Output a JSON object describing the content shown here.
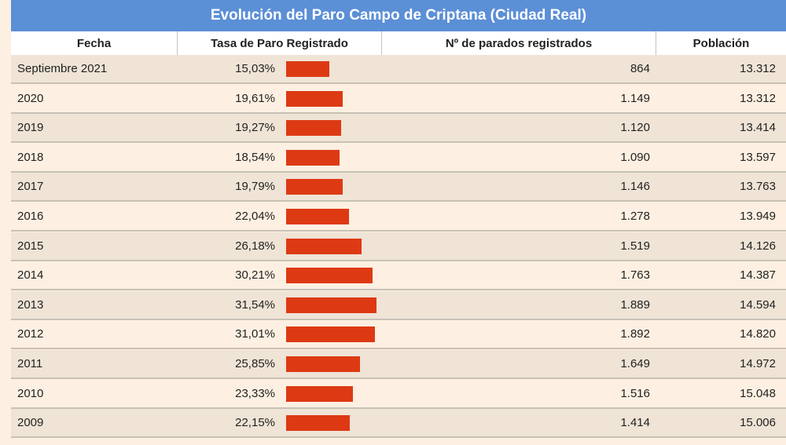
{
  "title": "Evolución del Paro Campo de Criptana (Ciudad Real)",
  "headers": {
    "fecha": "Fecha",
    "tasa": "Tasa de Paro Registrado",
    "parados": "Nº de parados registrados",
    "poblacion": "Población"
  },
  "colors": {
    "header_bg": "#5b8fd6",
    "bar": "#dd3a14",
    "row_alt": "#efe4d6",
    "row_base": "#fdf0e2"
  },
  "rows": [
    {
      "fecha": "Septiembre 2021",
      "tasa": "15,03%",
      "parados": "864",
      "poblacion": "13.312"
    },
    {
      "fecha": "2020",
      "tasa": "19,61%",
      "parados": "1.149",
      "poblacion": "13.312"
    },
    {
      "fecha": "2019",
      "tasa": "19,27%",
      "parados": "1.120",
      "poblacion": "13.414"
    },
    {
      "fecha": "2018",
      "tasa": "18,54%",
      "parados": "1.090",
      "poblacion": "13.597"
    },
    {
      "fecha": "2017",
      "tasa": "19,79%",
      "parados": "1.146",
      "poblacion": "13.763"
    },
    {
      "fecha": "2016",
      "tasa": "22,04%",
      "parados": "1.278",
      "poblacion": "13.949"
    },
    {
      "fecha": "2015",
      "tasa": "26,18%",
      "parados": "1.519",
      "poblacion": "14.126"
    },
    {
      "fecha": "2014",
      "tasa": "30,21%",
      "parados": "1.763",
      "poblacion": "14.387"
    },
    {
      "fecha": "2013",
      "tasa": "31,54%",
      "parados": "1.889",
      "poblacion": "14.594"
    },
    {
      "fecha": "2012",
      "tasa": "31,01%",
      "parados": "1.892",
      "poblacion": "14.820"
    },
    {
      "fecha": "2011",
      "tasa": "25,85%",
      "parados": "1.649",
      "poblacion": "14.972"
    },
    {
      "fecha": "2010",
      "tasa": "23,33%",
      "parados": "1.516",
      "poblacion": "15.048"
    },
    {
      "fecha": "2009",
      "tasa": "22,15%",
      "parados": "1.414",
      "poblacion": "15.006"
    }
  ],
  "chart_data": {
    "type": "bar",
    "categories": [
      "Septiembre 2021",
      "2020",
      "2019",
      "2018",
      "2017",
      "2016",
      "2015",
      "2014",
      "2013",
      "2012",
      "2011",
      "2010",
      "2009"
    ],
    "values": [
      15.03,
      19.61,
      19.27,
      18.54,
      19.79,
      22.04,
      26.18,
      30.21,
      31.54,
      31.01,
      25.85,
      23.33,
      22.15
    ],
    "title": "Evolución del Paro Campo de Criptana (Ciudad Real)",
    "xlabel": "",
    "ylabel": "Tasa de Paro Registrado"
  }
}
